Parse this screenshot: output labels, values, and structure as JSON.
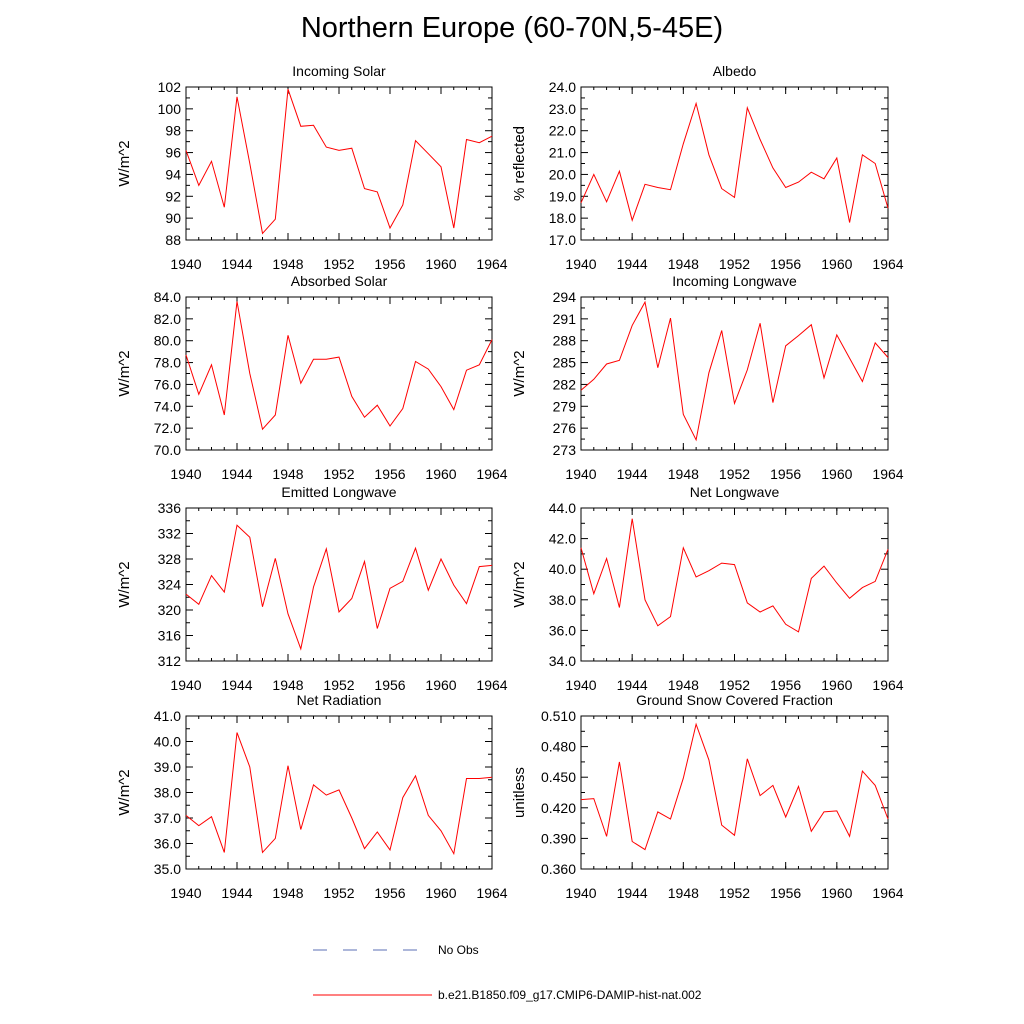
{
  "figure": {
    "title": "Northern Europe (60-70N,5-45E)"
  },
  "legend": {
    "items": [
      {
        "label": "No Obs",
        "style": "dashed",
        "color": "#5b6fb5"
      },
      {
        "label": "b.e21.B1850.f09_g17.CMIP6-DAMIP-hist-nat.002",
        "style": "solid",
        "color": "#ff0000"
      }
    ]
  },
  "colors": {
    "series": "#ff0000",
    "axis": "#000000"
  },
  "chart_data": [
    {
      "type": "line",
      "title": "Incoming Solar",
      "ylabel": "W/m^2",
      "xlim": [
        1940,
        1964
      ],
      "ylim": [
        88,
        102
      ],
      "xticks": [
        1940,
        1944,
        1948,
        1952,
        1956,
        1960,
        1964
      ],
      "yticks": [
        88,
        90,
        92,
        94,
        96,
        98,
        100,
        102
      ],
      "ytick_labels": [
        "88",
        "90",
        "92",
        "94",
        "96",
        "98",
        "100",
        "102"
      ],
      "x": [
        1940,
        1941,
        1942,
        1943,
        1944,
        1945,
        1946,
        1947,
        1948,
        1949,
        1950,
        1951,
        1952,
        1953,
        1954,
        1955,
        1956,
        1957,
        1958,
        1959,
        1960,
        1961,
        1962,
        1963,
        1964
      ],
      "series": [
        {
          "values": [
            96.2,
            93.0,
            95.2,
            91.0,
            101.1,
            95.0,
            88.6,
            89.9,
            101.8,
            98.4,
            98.5,
            96.5,
            96.2,
            96.4,
            92.7,
            92.4,
            89.1,
            91.2,
            97.1,
            95.9,
            94.7,
            89.1,
            97.2,
            96.9,
            97.5
          ]
        }
      ]
    },
    {
      "type": "line",
      "title": "Albedo",
      "ylabel": "% reflected",
      "xlim": [
        1940,
        1964
      ],
      "ylim": [
        17.0,
        24.0
      ],
      "xticks": [
        1940,
        1944,
        1948,
        1952,
        1956,
        1960,
        1964
      ],
      "yticks": [
        17,
        18,
        19,
        20,
        21,
        22,
        23,
        24
      ],
      "ytick_labels": [
        "17.0",
        "18.0",
        "19.0",
        "20.0",
        "21.0",
        "22.0",
        "23.0",
        "24.0"
      ],
      "x": [
        1940,
        1941,
        1942,
        1943,
        1944,
        1945,
        1946,
        1947,
        1948,
        1949,
        1950,
        1951,
        1952,
        1953,
        1954,
        1955,
        1956,
        1957,
        1958,
        1959,
        1960,
        1961,
        1962,
        1963,
        1964
      ],
      "series": [
        {
          "values": [
            18.7,
            20.0,
            18.75,
            20.15,
            17.9,
            19.55,
            19.4,
            19.3,
            21.4,
            23.25,
            20.9,
            19.35,
            18.95,
            23.05,
            21.6,
            20.3,
            19.4,
            19.65,
            20.1,
            19.8,
            20.75,
            17.8,
            20.9,
            20.5,
            18.45
          ]
        }
      ]
    },
    {
      "type": "line",
      "title": "Absorbed Solar",
      "ylabel": "W/m^2",
      "xlim": [
        1940,
        1964
      ],
      "ylim": [
        70.0,
        84.0
      ],
      "xticks": [
        1940,
        1944,
        1948,
        1952,
        1956,
        1960,
        1964
      ],
      "yticks": [
        70,
        72,
        74,
        76,
        78,
        80,
        82,
        84
      ],
      "ytick_labels": [
        "70.0",
        "72.0",
        "74.0",
        "76.0",
        "78.0",
        "80.0",
        "82.0",
        "84.0"
      ],
      "x": [
        1940,
        1941,
        1942,
        1943,
        1944,
        1945,
        1946,
        1947,
        1948,
        1949,
        1950,
        1951,
        1952,
        1953,
        1954,
        1955,
        1956,
        1957,
        1958,
        1959,
        1960,
        1961,
        1962,
        1963,
        1964
      ],
      "series": [
        {
          "values": [
            78.7,
            75.1,
            77.8,
            73.2,
            83.6,
            77.0,
            71.9,
            73.2,
            80.5,
            76.1,
            78.3,
            78.3,
            78.5,
            74.9,
            73.0,
            74.1,
            72.2,
            73.8,
            78.1,
            77.4,
            75.8,
            73.7,
            77.3,
            77.8,
            80.1
          ]
        }
      ]
    },
    {
      "type": "line",
      "title": "Incoming Longwave",
      "ylabel": "W/m^2",
      "xlim": [
        1940,
        1964
      ],
      "ylim": [
        273,
        294
      ],
      "xticks": [
        1940,
        1944,
        1948,
        1952,
        1956,
        1960,
        1964
      ],
      "yticks": [
        273,
        276,
        279,
        282,
        285,
        288,
        291,
        294
      ],
      "ytick_labels": [
        "273",
        "276",
        "279",
        "282",
        "285",
        "288",
        "291",
        "294"
      ],
      "x": [
        1940,
        1941,
        1942,
        1943,
        1944,
        1945,
        1946,
        1947,
        1948,
        1949,
        1950,
        1951,
        1952,
        1953,
        1954,
        1955,
        1956,
        1957,
        1958,
        1959,
        1960,
        1961,
        1962,
        1963,
        1964
      ],
      "series": [
        {
          "values": [
            281.2,
            282.7,
            284.8,
            285.3,
            290.1,
            293.3,
            284.3,
            291.1,
            277.9,
            274.4,
            283.6,
            289.4,
            279.4,
            284.0,
            290.4,
            279.5,
            287.3,
            288.7,
            290.2,
            282.9,
            288.8,
            285.6,
            282.4,
            287.7,
            285.7
          ]
        }
      ]
    },
    {
      "type": "line",
      "title": "Emitted Longwave",
      "ylabel": "W/m^2",
      "xlim": [
        1940,
        1964
      ],
      "ylim": [
        312,
        336
      ],
      "xticks": [
        1940,
        1944,
        1948,
        1952,
        1956,
        1960,
        1964
      ],
      "yticks": [
        312,
        316,
        320,
        324,
        328,
        332,
        336
      ],
      "ytick_labels": [
        "312",
        "316",
        "320",
        "324",
        "328",
        "332",
        "336"
      ],
      "x": [
        1940,
        1941,
        1942,
        1943,
        1944,
        1945,
        1946,
        1947,
        1948,
        1949,
        1950,
        1951,
        1952,
        1953,
        1954,
        1955,
        1956,
        1957,
        1958,
        1959,
        1960,
        1961,
        1962,
        1963,
        1964
      ],
      "series": [
        {
          "values": [
            322.5,
            320.9,
            325.4,
            322.8,
            333.3,
            331.4,
            320.5,
            328.1,
            319.4,
            313.9,
            323.6,
            329.6,
            319.7,
            321.8,
            327.6,
            317.1,
            323.4,
            324.5,
            329.7,
            323.1,
            328.0,
            323.9,
            321.0,
            326.8,
            327.0
          ]
        }
      ]
    },
    {
      "type": "line",
      "title": "Net Longwave",
      "ylabel": "W/m^2",
      "xlim": [
        1940,
        1964
      ],
      "ylim": [
        34.0,
        44.0
      ],
      "xticks": [
        1940,
        1944,
        1948,
        1952,
        1956,
        1960,
        1964
      ],
      "yticks": [
        34,
        36,
        38,
        40,
        42,
        44
      ],
      "ytick_labels": [
        "34.0",
        "36.0",
        "38.0",
        "40.0",
        "42.0",
        "44.0"
      ],
      "x": [
        1940,
        1941,
        1942,
        1943,
        1944,
        1945,
        1946,
        1947,
        1948,
        1949,
        1950,
        1951,
        1952,
        1953,
        1954,
        1955,
        1956,
        1957,
        1958,
        1959,
        1960,
        1961,
        1962,
        1963,
        1964
      ],
      "series": [
        {
          "values": [
            41.4,
            38.4,
            40.7,
            37.5,
            43.3,
            38.0,
            36.3,
            36.9,
            41.4,
            39.5,
            39.9,
            40.4,
            40.3,
            37.8,
            37.2,
            37.6,
            36.4,
            35.9,
            39.4,
            40.2,
            39.1,
            38.1,
            38.8,
            39.2,
            41.3
          ]
        }
      ]
    },
    {
      "type": "line",
      "title": "Net Radiation",
      "ylabel": "W/m^2",
      "xlim": [
        1940,
        1964
      ],
      "ylim": [
        35.0,
        41.0
      ],
      "xticks": [
        1940,
        1944,
        1948,
        1952,
        1956,
        1960,
        1964
      ],
      "yticks": [
        35,
        36,
        37,
        38,
        39,
        40,
        41
      ],
      "ytick_labels": [
        "35.0",
        "36.0",
        "37.0",
        "38.0",
        "39.0",
        "40.0",
        "41.0"
      ],
      "x": [
        1940,
        1941,
        1942,
        1943,
        1944,
        1945,
        1946,
        1947,
        1948,
        1949,
        1950,
        1951,
        1952,
        1953,
        1954,
        1955,
        1956,
        1957,
        1958,
        1959,
        1960,
        1961,
        1962,
        1963,
        1964
      ],
      "series": [
        {
          "values": [
            37.1,
            36.7,
            37.05,
            35.65,
            40.35,
            39.0,
            35.65,
            36.2,
            39.05,
            36.55,
            38.3,
            37.9,
            38.1,
            37.0,
            35.8,
            36.45,
            35.75,
            37.8,
            38.65,
            37.1,
            36.5,
            35.6,
            38.55,
            38.55,
            38.6
          ]
        }
      ]
    },
    {
      "type": "line",
      "title": "Ground Snow Covered Fraction",
      "ylabel": "unitless",
      "xlim": [
        1940,
        1964
      ],
      "ylim": [
        0.36,
        0.51
      ],
      "xticks": [
        1940,
        1944,
        1948,
        1952,
        1956,
        1960,
        1964
      ],
      "yticks": [
        0.36,
        0.39,
        0.42,
        0.45,
        0.48,
        0.51
      ],
      "ytick_labels": [
        "0.360",
        "0.390",
        "0.420",
        "0.450",
        "0.480",
        "0.510"
      ],
      "x": [
        1940,
        1941,
        1942,
        1943,
        1944,
        1945,
        1946,
        1947,
        1948,
        1949,
        1950,
        1951,
        1952,
        1953,
        1954,
        1955,
        1956,
        1957,
        1958,
        1959,
        1960,
        1961,
        1962,
        1963,
        1964
      ],
      "series": [
        {
          "values": [
            0.428,
            0.429,
            0.392,
            0.465,
            0.387,
            0.379,
            0.416,
            0.409,
            0.449,
            0.502,
            0.467,
            0.403,
            0.393,
            0.468,
            0.432,
            0.442,
            0.411,
            0.441,
            0.397,
            0.416,
            0.417,
            0.392,
            0.456,
            0.442,
            0.409
          ]
        }
      ]
    }
  ]
}
